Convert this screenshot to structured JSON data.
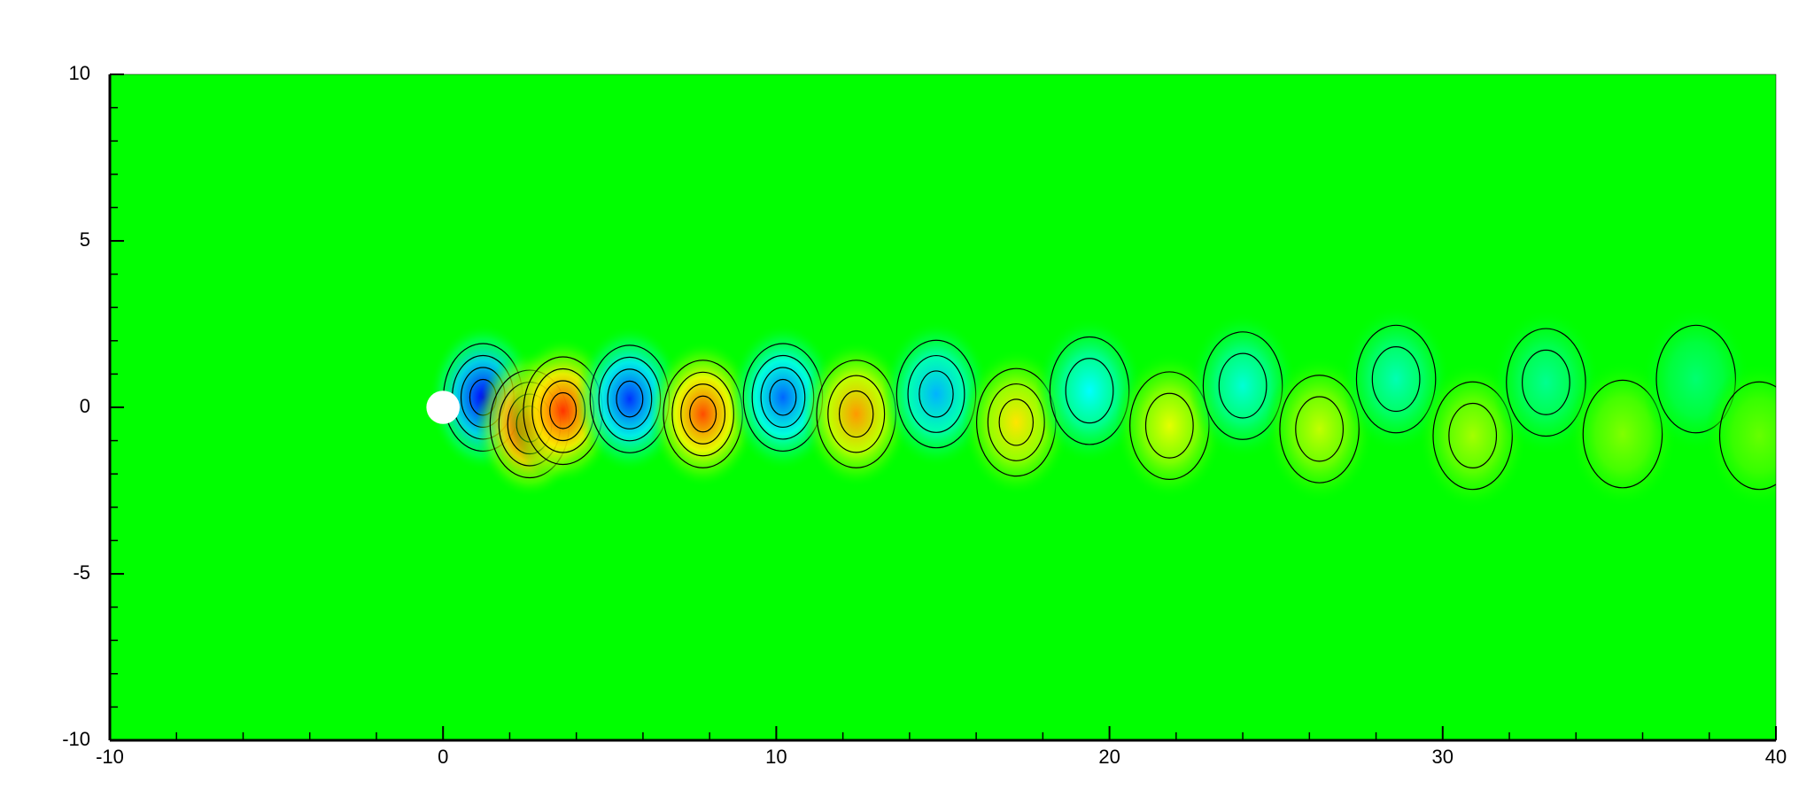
{
  "chart_data": {
    "type": "contour",
    "xlim": [
      -10,
      40
    ],
    "ylim": [
      -10,
      10
    ],
    "xticks": [
      -10,
      0,
      10,
      20,
      30,
      40
    ],
    "yticks": [
      -10,
      -5,
      0,
      5,
      10
    ],
    "background_color": "#00ff00",
    "colormap": [
      "#0000ff",
      "#00ffff",
      "#00ff00",
      "#ffff00",
      "#ff0000"
    ],
    "x": [
      1.2,
      2.6,
      3.6,
      5.6,
      7.8,
      10.2,
      12.4,
      14.8,
      17.2,
      19.4,
      21.8,
      24.0,
      26.3,
      28.6,
      30.9,
      33.1,
      35.4,
      37.6,
      39.5
    ],
    "y": [
      0.3,
      -0.5,
      -0.1,
      0.25,
      -0.2,
      0.3,
      -0.2,
      0.4,
      -0.45,
      0.5,
      -0.55,
      0.65,
      -0.65,
      0.85,
      -0.85,
      0.75,
      -0.8,
      0.85,
      -0.85
    ],
    "values": [
      -1,
      1,
      0.9,
      -0.9,
      0.85,
      -0.8,
      0.7,
      -0.65,
      0.55,
      -0.5,
      0.45,
      -0.42,
      0.38,
      -0.35,
      0.32,
      -0.28,
      0.25,
      -0.22,
      0.2
    ]
  }
}
